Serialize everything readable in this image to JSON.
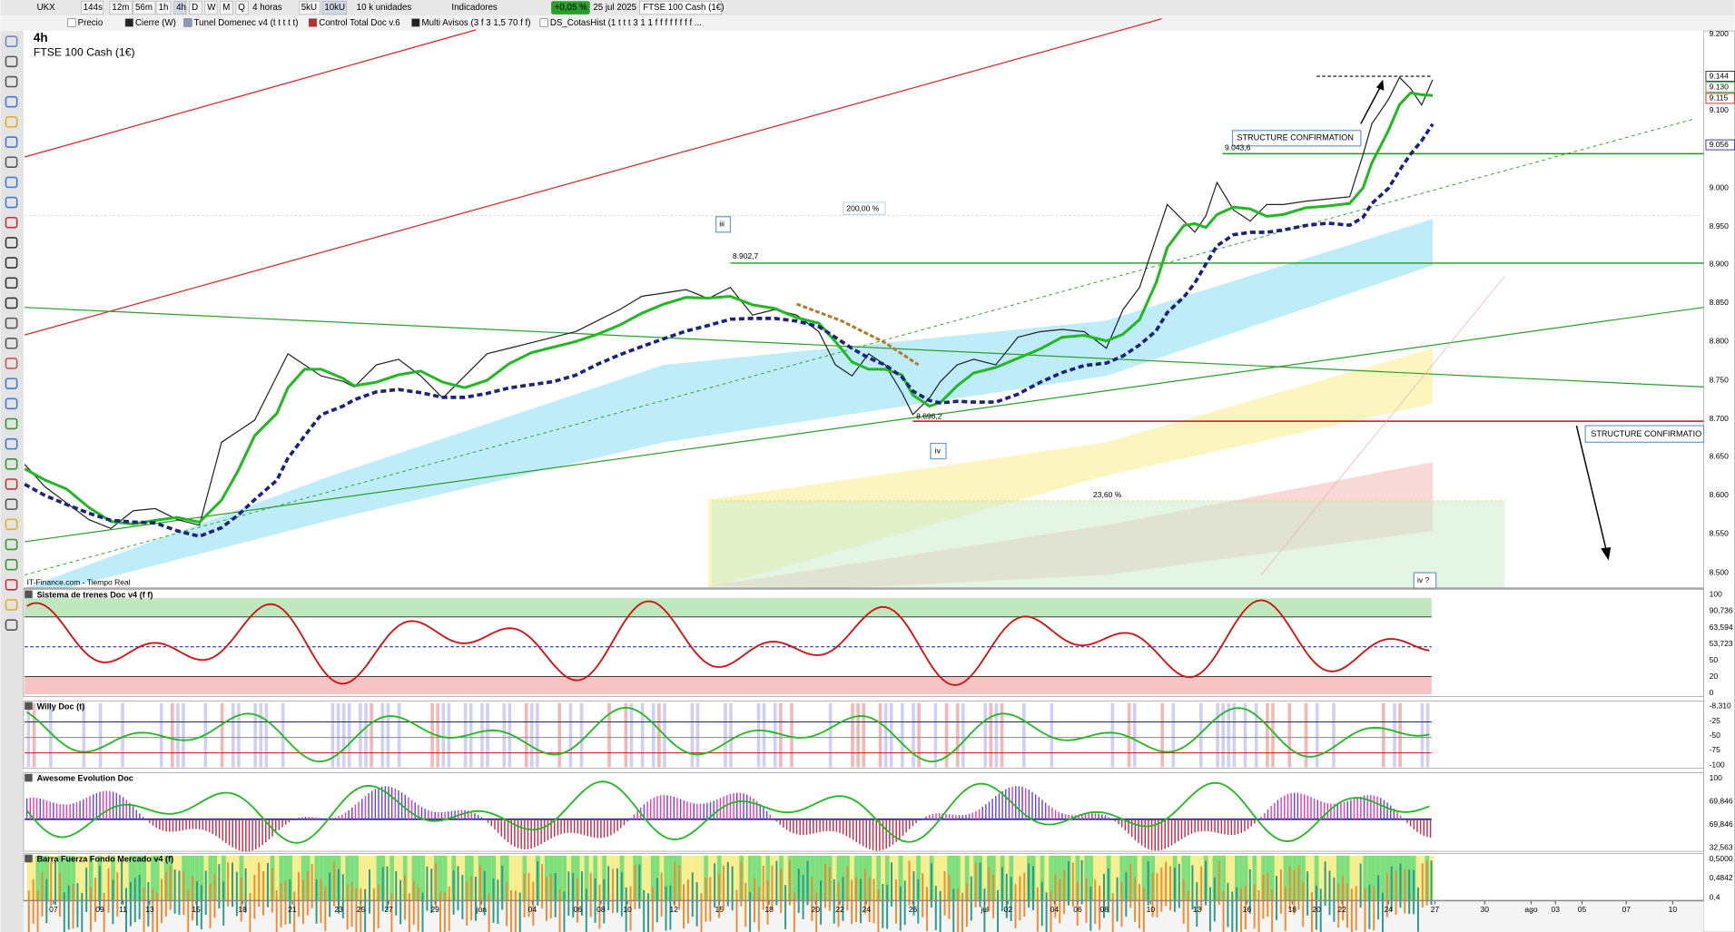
{
  "toolbar": {
    "symbol": "UKX",
    "periods": [
      "144s",
      "12m",
      "56m",
      "1h",
      "4h",
      "D",
      "W",
      "M",
      "Q"
    ],
    "timeframe": "4 horas",
    "units": [
      "5kU",
      "10kU"
    ],
    "quantity": "10 k unidades",
    "indicators": "Indicadores",
    "change": "+0,05 %",
    "date": "25 jul 2025",
    "instrument": "FTSE 100 Cash (1€)"
  },
  "legend_bar": [
    "Precio",
    "Cierre (W)",
    "Tunel Domenec v4 (t t t t t)",
    "Control Total Doc v.6",
    "Multi Avisos (3 f 3 1,5 70 f f)",
    "DS_CotasHist (1 t t t 3 1 1 f f f f f f f f ..."
  ],
  "main": {
    "timeframe": "4h",
    "title": "FTSE 100 Cash (1€)",
    "source": "IT-Finance.com - Tiempo Real",
    "price_axis": [
      "9.200",
      "9.100",
      "9.000",
      "8.950",
      "8.900",
      "8.850",
      "8.800",
      "8.750",
      "8.700",
      "8.650",
      "8.600",
      "8.550",
      "8.500"
    ],
    "price_tags": [
      "9.144",
      "9.130",
      "9.115",
      "9.056"
    ],
    "annotations": [
      "STRUCTURE CONFIRMATION",
      "9.043,6",
      "200,00 %",
      "iii",
      "8.902,7",
      "8.696,2",
      "iv",
      "23,60 %",
      "iv ?",
      "STRUCTURE CONFIRMATIO"
    ]
  },
  "panels": [
    {
      "title": "Sistema de trenes Doc v4 (f f)",
      "axis": [
        "100",
        "90,736",
        "63,594",
        "53,723",
        "50",
        "20",
        "0"
      ]
    },
    {
      "title": "Willy Doc (t)",
      "axis": [
        "-8,310",
        "-25",
        "-50",
        "-75",
        "-100"
      ]
    },
    {
      "title": "Awesome Evolution Doc",
      "axis": [
        "100",
        "69,846",
        "69,846",
        "32,563"
      ]
    },
    {
      "title": "Barra Fuerza Fondo Mercado v4 (f)",
      "axis": [
        "0,5000",
        "0,4842",
        "0,4"
      ]
    }
  ],
  "date_axis": [
    "07",
    "09",
    "11",
    "13",
    "15",
    "18",
    "21",
    "23",
    "25",
    "27",
    "29",
    "jun",
    "04",
    "06",
    "08",
    "10",
    "12",
    "15",
    "18",
    "20",
    "22",
    "24",
    "26",
    "jul",
    "02",
    "04",
    "06",
    "08",
    "10",
    "13",
    "16",
    "18",
    "20",
    "22",
    "24",
    "27",
    "30",
    "ago",
    "03",
    "05",
    "07",
    "10"
  ]
}
